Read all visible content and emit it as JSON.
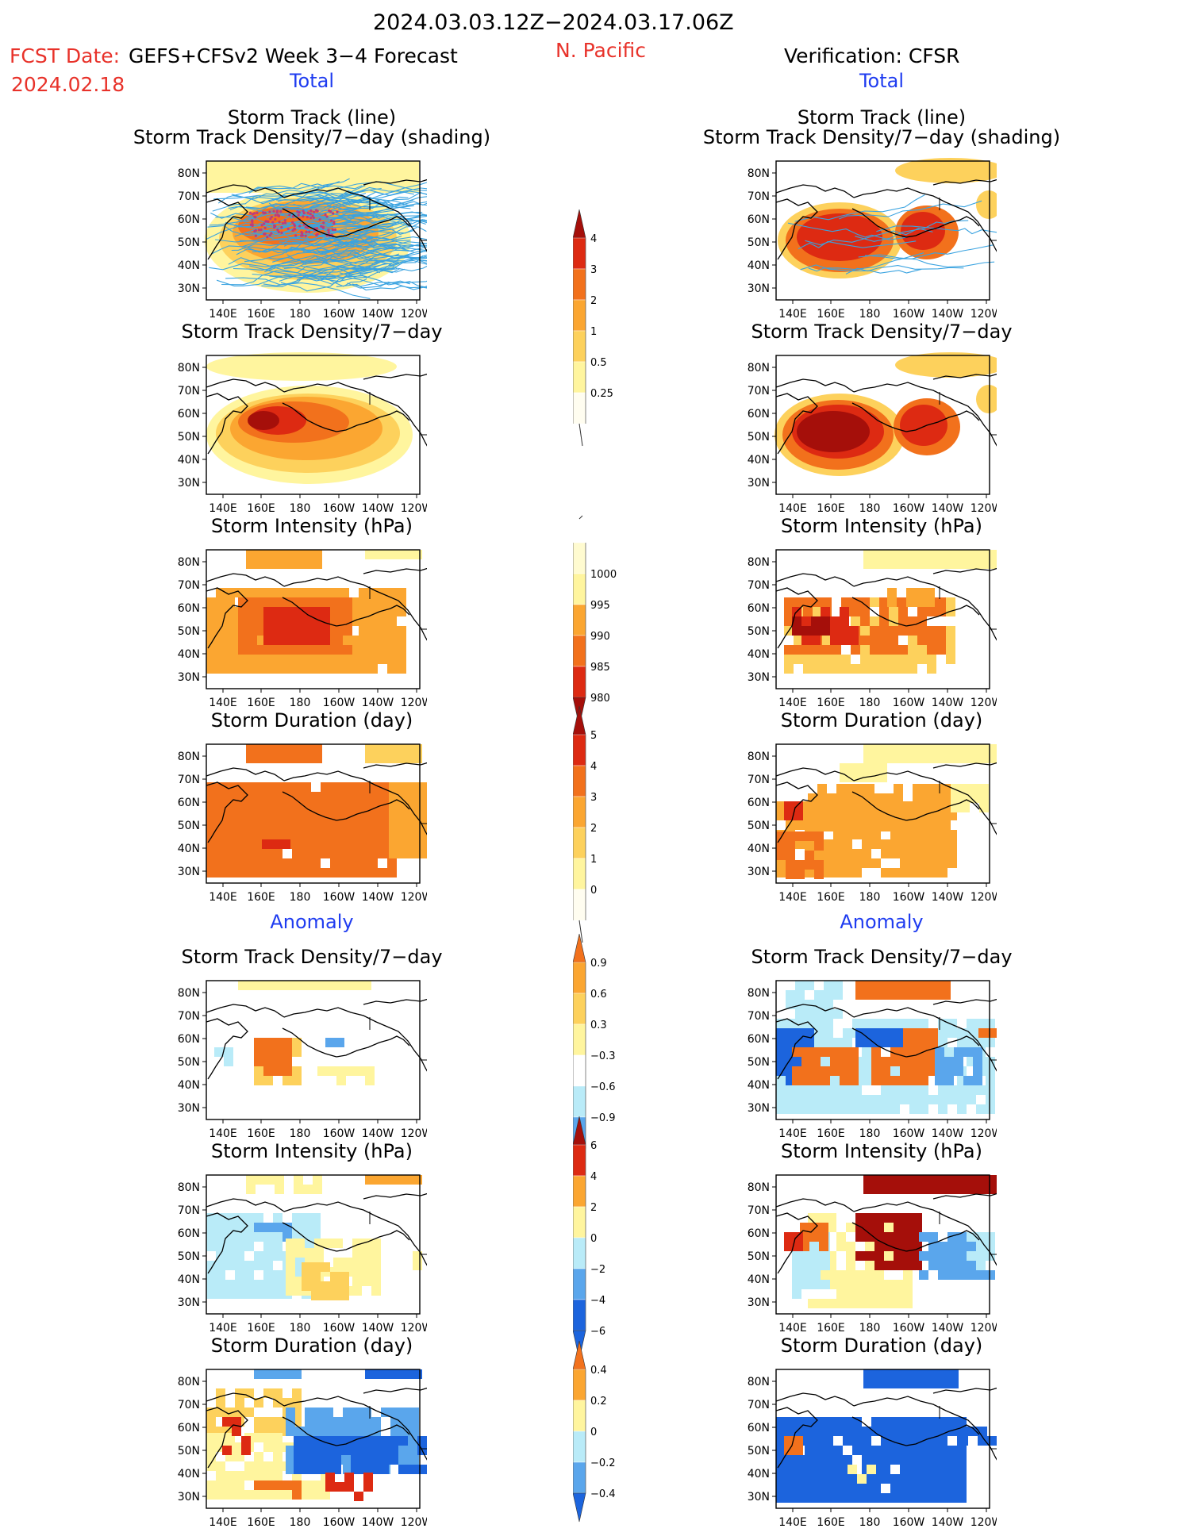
{
  "header": {
    "period": "2024.03.03.12Z−2024.03.17.06Z",
    "fcst_date_label": "FCST Date:",
    "fcst_date": "2024.02.18",
    "model": "GEFS+CFSv2 Week 3−4 Forecast",
    "region": "N. Pacific",
    "verification": "Verification: CFSR"
  },
  "sections": {
    "left_total": "Total",
    "right_total": "Total",
    "left_anomaly": "Anomaly",
    "right_anomaly": "Anomaly"
  },
  "panel_titles": {
    "track_line": "Storm Track (line)",
    "track_shading": "Storm Track Density/7−day (shading)",
    "density": "Storm Track Density/7−day",
    "intensity": "Storm Intensity (hPa)",
    "duration": "Storm Duration (day)"
  },
  "axes": {
    "lat_ticks": [
      "80N",
      "70N",
      "60N",
      "50N",
      "40N",
      "30N"
    ],
    "lon_ticks": [
      "140E",
      "160E",
      "180",
      "160W",
      "140W",
      "120W"
    ]
  },
  "colorbars": {
    "density_total": [
      "4",
      "3",
      "2",
      "1",
      "0.5",
      "0.25"
    ],
    "intensity_total": [
      "1000",
      "995",
      "990",
      "985",
      "980"
    ],
    "duration_total": [
      "5",
      "4",
      "3",
      "2",
      "1",
      "0"
    ],
    "density_anom": [
      "0.9",
      "0.6",
      "0.3",
      "−0.3",
      "−0.6",
      "−0.9"
    ],
    "intensity_anom": [
      "6",
      "4",
      "2",
      "0",
      "−2",
      "−4",
      "−6"
    ],
    "duration_anom": [
      "0.4",
      "0.2",
      "0",
      "−0.2",
      "−0.4"
    ]
  },
  "colors": {
    "red_text": "#e8322a",
    "blue_text": "#1f3cf0",
    "pale_yellow": "#fff59e",
    "light_orange": "#fdd15c",
    "orange": "#fba631",
    "dark_orange": "#f2711c",
    "red": "#dd2a12",
    "dark_red": "#a50f0a",
    "light_blue": "#b9ebf8",
    "mid_blue": "#5aa6ec",
    "blue": "#1c64dd"
  }
}
